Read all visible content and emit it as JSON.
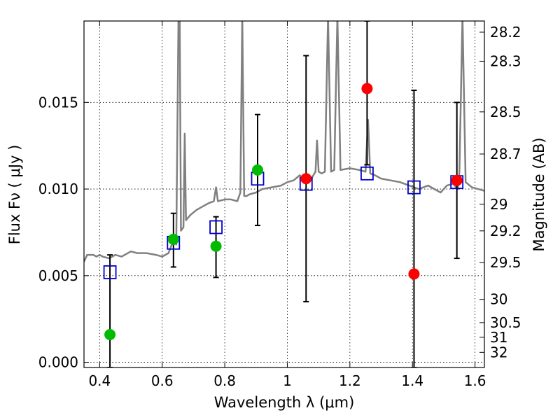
{
  "chart_data": {
    "type": "scatter",
    "title": "",
    "xlabel": "Wavelength  λ (μm)",
    "ylabel": "Flux  Fν  ( μJy )",
    "ylabel_right": "Magnitude (AB)",
    "xlim": [
      0.35,
      1.63
    ],
    "ylim": [
      -0.0003,
      0.0197
    ],
    "grid": true,
    "x_ticks": [
      {
        "value": 0.4,
        "label": "0.4"
      },
      {
        "value": 0.6,
        "label": "0.6"
      },
      {
        "value": 0.8,
        "label": "0.8"
      },
      {
        "value": 1.0,
        "label": "1"
      },
      {
        "value": 1.2,
        "label": "1.2"
      },
      {
        "value": 1.4,
        "label": "1.4"
      },
      {
        "value": 1.6,
        "label": "1.6"
      }
    ],
    "y_ticks": [
      {
        "value": 0.0,
        "label": "0.000"
      },
      {
        "value": 0.005,
        "label": "0.005"
      },
      {
        "value": 0.01,
        "label": "0.010"
      },
      {
        "value": 0.015,
        "label": "0.015"
      }
    ],
    "right_ticks": [
      {
        "value": 28.2,
        "label": "28.2"
      },
      {
        "value": 28.3,
        "label": "28.3"
      },
      {
        "value": 28.5,
        "label": "28.5"
      },
      {
        "value": 28.7,
        "label": "28.7"
      },
      {
        "value": 29.0,
        "label": "29"
      },
      {
        "value": 29.2,
        "label": "29.2"
      },
      {
        "value": 29.5,
        "label": "29.5"
      },
      {
        "value": 30.0,
        "label": "30"
      },
      {
        "value": 30.5,
        "label": "30.5"
      },
      {
        "value": 31.0,
        "label": "31"
      },
      {
        "value": 32.0,
        "label": "32"
      }
    ],
    "series": [
      {
        "kind": "line",
        "color": "#808080",
        "points": [
          [
            0.35,
            0.0058
          ],
          [
            0.36,
            0.0062
          ],
          [
            0.38,
            0.0062
          ],
          [
            0.39,
            0.0061
          ],
          [
            0.4,
            0.0062
          ],
          [
            0.41,
            0.0061
          ],
          [
            0.43,
            0.006
          ],
          [
            0.45,
            0.0062
          ],
          [
            0.47,
            0.0061
          ],
          [
            0.5,
            0.0064
          ],
          [
            0.52,
            0.0063
          ],
          [
            0.55,
            0.0063
          ],
          [
            0.58,
            0.0062
          ],
          [
            0.6,
            0.0061
          ],
          [
            0.62,
            0.0063
          ],
          [
            0.635,
            0.007
          ],
          [
            0.645,
            0.0068
          ],
          [
            0.652,
            0.02
          ],
          [
            0.656,
            0.02
          ],
          [
            0.66,
            0.0076
          ],
          [
            0.668,
            0.0078
          ],
          [
            0.672,
            0.0132
          ],
          [
            0.676,
            0.0082
          ],
          [
            0.69,
            0.0085
          ],
          [
            0.71,
            0.0088
          ],
          [
            0.73,
            0.009
          ],
          [
            0.75,
            0.0092
          ],
          [
            0.765,
            0.0093
          ],
          [
            0.772,
            0.0101
          ],
          [
            0.778,
            0.0093
          ],
          [
            0.8,
            0.0094
          ],
          [
            0.82,
            0.0094
          ],
          [
            0.84,
            0.0093
          ],
          [
            0.85,
            0.0098
          ],
          [
            0.856,
            0.02
          ],
          [
            0.862,
            0.0096
          ],
          [
            0.87,
            0.0096
          ],
          [
            0.88,
            0.0097
          ],
          [
            0.9,
            0.0098
          ],
          [
            0.92,
            0.01
          ],
          [
            0.95,
            0.0101
          ],
          [
            0.98,
            0.0102
          ],
          [
            1.0,
            0.0104
          ],
          [
            1.02,
            0.0105
          ],
          [
            1.04,
            0.0108
          ],
          [
            1.05,
            0.0106
          ],
          [
            1.06,
            0.0103
          ],
          [
            1.08,
            0.0107
          ],
          [
            1.09,
            0.011
          ],
          [
            1.095,
            0.0128
          ],
          [
            1.1,
            0.011
          ],
          [
            1.11,
            0.0109
          ],
          [
            1.12,
            0.011
          ],
          [
            1.13,
            0.02
          ],
          [
            1.14,
            0.011
          ],
          [
            1.15,
            0.0111
          ],
          [
            1.16,
            0.02
          ],
          [
            1.17,
            0.0111
          ],
          [
            1.2,
            0.0112
          ],
          [
            1.23,
            0.0111
          ],
          [
            1.25,
            0.011
          ],
          [
            1.258,
            0.014
          ],
          [
            1.265,
            0.0109
          ],
          [
            1.28,
            0.0108
          ],
          [
            1.3,
            0.0106
          ],
          [
            1.33,
            0.0105
          ],
          [
            1.36,
            0.0104
          ],
          [
            1.39,
            0.0102
          ],
          [
            1.42,
            0.01
          ],
          [
            1.45,
            0.0102
          ],
          [
            1.47,
            0.01
          ],
          [
            1.49,
            0.0098
          ],
          [
            1.51,
            0.0102
          ],
          [
            1.53,
            0.0103
          ],
          [
            1.545,
            0.01
          ],
          [
            1.55,
            0.011
          ],
          [
            1.56,
            0.02
          ],
          [
            1.57,
            0.0104
          ],
          [
            1.59,
            0.0101
          ],
          [
            1.61,
            0.01
          ],
          [
            1.63,
            0.0099
          ]
        ]
      },
      {
        "kind": "errorbar",
        "color": "#000000",
        "bars": [
          {
            "x": 0.433,
            "ylo": -0.0003,
            "yhi": 0.0062
          },
          {
            "x": 0.636,
            "ylo": 0.0055,
            "yhi": 0.0086
          },
          {
            "x": 0.772,
            "ylo": 0.0049,
            "yhi": 0.0084
          },
          {
            "x": 0.905,
            "ylo": 0.0079,
            "yhi": 0.0143
          },
          {
            "x": 1.06,
            "ylo": 0.0035,
            "yhi": 0.0177
          },
          {
            "x": 1.255,
            "ylo": 0.0114,
            "yhi": 0.0197
          },
          {
            "x": 1.405,
            "ylo": -0.0003,
            "yhi": 0.0157
          },
          {
            "x": 1.542,
            "ylo": 0.006,
            "yhi": 0.015
          }
        ]
      },
      {
        "kind": "open-square",
        "color": "#0000cc",
        "points": [
          [
            0.433,
            0.0052
          ],
          [
            0.636,
            0.0069
          ],
          [
            0.772,
            0.0078
          ],
          [
            0.905,
            0.0106
          ],
          [
            1.06,
            0.0103
          ],
          [
            1.255,
            0.0109
          ],
          [
            1.405,
            0.0101
          ],
          [
            1.542,
            0.0104
          ]
        ]
      },
      {
        "kind": "dot",
        "color": "#00bb00",
        "points": [
          [
            0.433,
            0.0016
          ],
          [
            0.636,
            0.0071
          ],
          [
            0.772,
            0.0067
          ],
          [
            0.905,
            0.0111
          ]
        ]
      },
      {
        "kind": "dot",
        "color": "#ff0000",
        "points": [
          [
            1.06,
            0.0106
          ],
          [
            1.255,
            0.0158
          ],
          [
            1.405,
            0.0051
          ],
          [
            1.542,
            0.0105
          ]
        ]
      }
    ]
  }
}
